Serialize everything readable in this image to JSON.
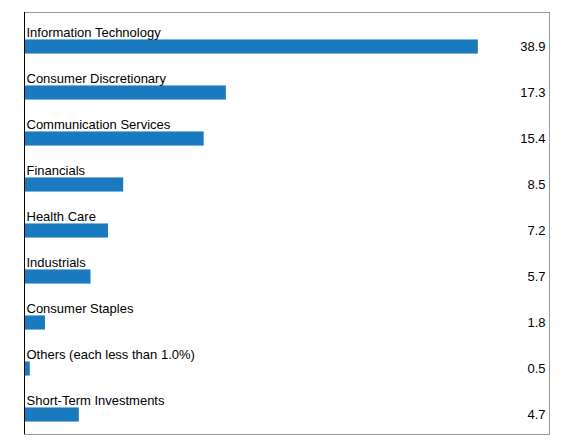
{
  "chart_data": {
    "type": "bar",
    "orientation": "horizontal",
    "categories": [
      "Information Technology",
      "Consumer Discretionary",
      "Communication Services",
      "Financials",
      "Health Care",
      "Industrials",
      "Consumer Staples",
      "Others (each less than 1.0%)",
      "Short-Term Investments"
    ],
    "values": [
      38.9,
      17.3,
      15.4,
      8.5,
      7.2,
      5.7,
      1.8,
      0.5,
      4.7
    ],
    "color": "#1a7abf",
    "xlim": [
      0,
      45
    ],
    "data_labels": true,
    "tick_labels": false,
    "grid": false
  }
}
